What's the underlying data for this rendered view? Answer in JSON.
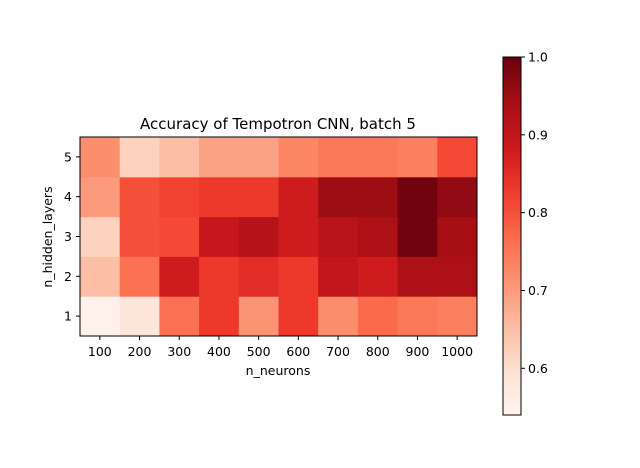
{
  "chart_data": {
    "type": "heatmap",
    "title": "Accuracy of Tempotron CNN, batch 5",
    "xlabel": "n_neurons",
    "ylabel": "n_hidden_layers",
    "x_categories": [
      "100",
      "200",
      "300",
      "400",
      "500",
      "600",
      "700",
      "800",
      "900",
      "1000"
    ],
    "y_categories": [
      "1",
      "2",
      "3",
      "4",
      "5"
    ],
    "colormap": "Reds",
    "vmin": 0.54,
    "vmax": 1.0,
    "colorbar_ticks": [
      "0.6",
      "0.7",
      "0.8",
      "0.9",
      "1.0"
    ],
    "colorbar_tick_values": [
      0.6,
      0.7,
      0.8,
      0.9,
      1.0
    ],
    "values": [
      [
        0.55,
        0.58,
        0.76,
        0.83,
        0.71,
        0.83,
        0.72,
        0.77,
        0.75,
        0.74
      ],
      [
        0.65,
        0.76,
        0.88,
        0.83,
        0.85,
        0.83,
        0.9,
        0.88,
        0.93,
        0.93
      ],
      [
        0.62,
        0.8,
        0.81,
        0.89,
        0.92,
        0.88,
        0.91,
        0.93,
        0.99,
        0.94
      ],
      [
        0.7,
        0.8,
        0.82,
        0.83,
        0.83,
        0.88,
        0.95,
        0.95,
        0.99,
        0.96
      ],
      [
        0.72,
        0.62,
        0.65,
        0.69,
        0.69,
        0.73,
        0.75,
        0.75,
        0.74,
        0.81
      ]
    ],
    "grid": false
  }
}
